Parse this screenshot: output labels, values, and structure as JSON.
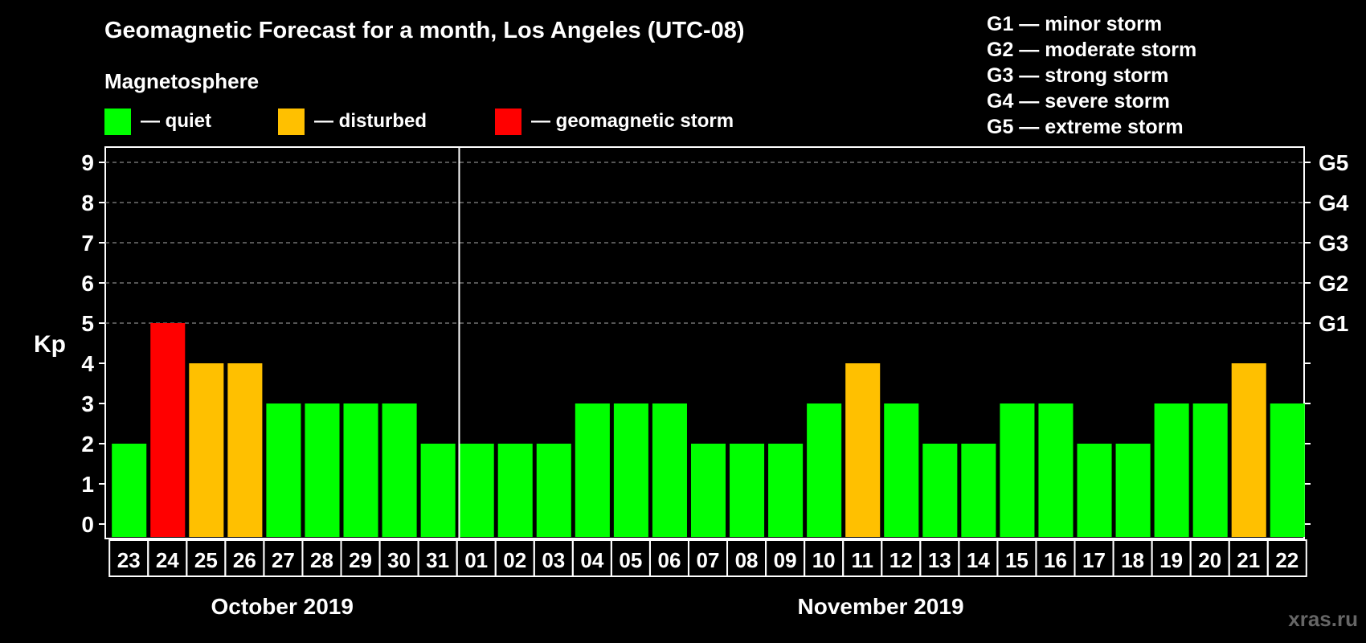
{
  "title": "Geomagnetic Forecast for a month, Los Angeles (UTC-08)",
  "magnetosphere_label": "Magnetosphere",
  "legend": [
    {
      "label": "— quiet",
      "color": "#00ff00"
    },
    {
      "label": "— disturbed",
      "color": "#ffc000"
    },
    {
      "label": "— geomagnetic storm",
      "color": "#ff0000"
    }
  ],
  "gscale": [
    "G1 — minor storm",
    "G2 — moderate storm",
    "G3 — strong storm",
    "G4 — severe storm",
    "G5 — extreme storm"
  ],
  "watermark": "xras.ru",
  "chart_data": {
    "type": "bar",
    "title": "Geomagnetic Forecast for a month, Los Angeles (UTC-08)",
    "ylabel": "Kp",
    "ylim": [
      0,
      9
    ],
    "yticks": [
      "0",
      "1",
      "2",
      "3",
      "4",
      "5",
      "6",
      "7",
      "8",
      "9"
    ],
    "right_axis": [
      {
        "kp": 5,
        "label": "G1"
      },
      {
        "kp": 6,
        "label": "G2"
      },
      {
        "kp": 7,
        "label": "G3"
      },
      {
        "kp": 8,
        "label": "G4"
      },
      {
        "kp": 9,
        "label": "G5"
      }
    ],
    "categories": [
      "23",
      "24",
      "25",
      "26",
      "27",
      "28",
      "29",
      "30",
      "31",
      "01",
      "02",
      "03",
      "04",
      "05",
      "06",
      "07",
      "08",
      "09",
      "10",
      "11",
      "12",
      "13",
      "14",
      "15",
      "16",
      "17",
      "18",
      "19",
      "20",
      "21",
      "22"
    ],
    "values": [
      2,
      5,
      4,
      4,
      3,
      3,
      3,
      3,
      2,
      2,
      2,
      2,
      3,
      3,
      3,
      2,
      2,
      2,
      3,
      4,
      3,
      2,
      2,
      3,
      3,
      2,
      2,
      3,
      3,
      4,
      3
    ],
    "month_groups": [
      {
        "label": "October 2019",
        "count": 9
      },
      {
        "label": "November 2019",
        "count": 22
      }
    ],
    "colors": {
      "quiet": "#00ff00",
      "disturbed": "#ffc000",
      "storm": "#ff0000"
    },
    "grid_from": 5
  }
}
